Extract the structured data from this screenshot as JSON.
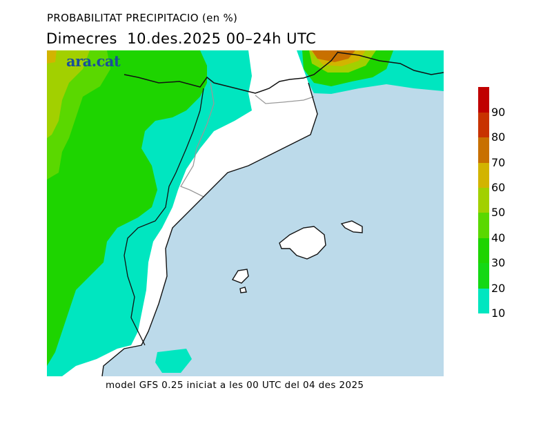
{
  "title": "PROBABILITAT PRECIPITACIO (en %)",
  "subtitle": "Dimecres  10.des.2025 00–24h UTC",
  "logo": "ara.cat",
  "footer": "model GFS 0.25 iniciat a les 00 UTC del 04 des 2025",
  "legend": {
    "levels": [
      {
        "label": "10",
        "color": "#00E6C0"
      },
      {
        "label": "20",
        "color": "#14D814"
      },
      {
        "label": "30",
        "color": "#1ED400"
      },
      {
        "label": "40",
        "color": "#5AD800"
      },
      {
        "label": "50",
        "color": "#A2D000"
      },
      {
        "label": "60",
        "color": "#D2B400"
      },
      {
        "label": "70",
        "color": "#C87000"
      },
      {
        "label": "80",
        "color": "#C83200"
      },
      {
        "label": "90",
        "color": "#C00000"
      }
    ]
  },
  "colors": {
    "sea": "#BCDAEA",
    "land": "#FFFFFF"
  }
}
